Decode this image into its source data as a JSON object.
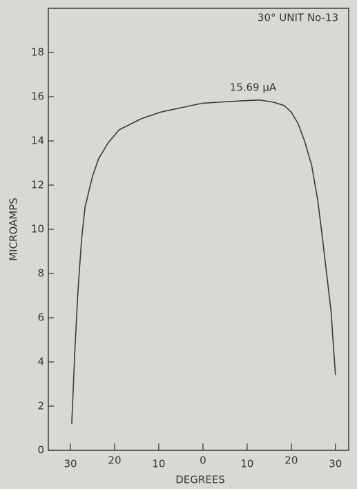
{
  "chart_data": {
    "type": "line",
    "annotations": [
      "30° UNIT No-13",
      "15.69 μA"
    ],
    "xlabel": "DEGREES",
    "ylabel": "MICROAMPS",
    "x": [
      -29.7,
      -29,
      -28.3,
      -27.5,
      -26.7,
      -25,
      -23.6,
      -21.5,
      -19,
      -14,
      -9.6,
      -5,
      -0.3,
      3.5,
      7.5,
      10.5,
      12.9,
      16,
      18.4,
      20,
      21.5,
      23,
      24.6,
      26,
      27,
      28,
      29,
      30
    ],
    "series": [
      {
        "name": "30° UNIT No-13",
        "color": "#3a3a3a",
        "values": [
          1.2,
          4.5,
          7.2,
          9.5,
          11,
          12.4,
          13.2,
          13.9,
          14.5,
          15,
          15.3,
          15.5,
          15.7,
          15.75,
          15.8,
          15.83,
          15.85,
          15.75,
          15.6,
          15.3,
          14.8,
          14,
          12.9,
          11.3,
          9.7,
          8,
          6.3,
          3.4
        ]
      }
    ],
    "xlim": [
      -35,
      33
    ],
    "xticks": [
      {
        "value": -30,
        "label": "30"
      },
      {
        "value": -20,
        "label": "20"
      },
      {
        "value": -10,
        "label": "10"
      },
      0,
      10,
      20,
      30
    ],
    "ylim": [
      0,
      20
    ],
    "yticks": [
      0,
      2,
      4,
      6,
      8,
      10,
      12,
      14,
      16,
      18
    ],
    "grid": false
  }
}
